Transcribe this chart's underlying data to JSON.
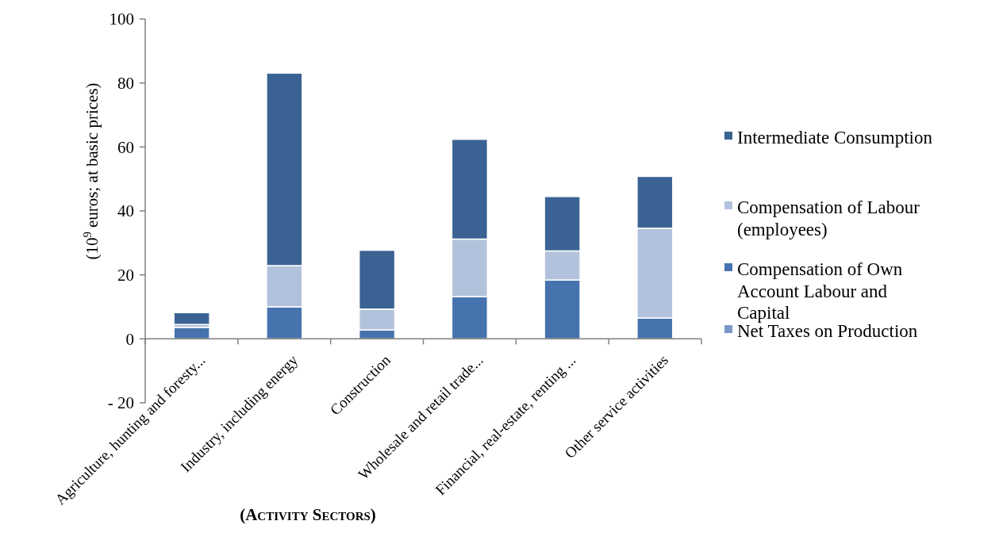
{
  "chart_data": {
    "type": "bar",
    "stacked": true,
    "xlabel": "(Activity Sectors)",
    "ylabel": "(10$^{9}$ euros; at basic prices)",
    "categories": [
      "Agriculture, hunting and foresty...",
      "Industry, including energy",
      "Construction",
      "Wholesale  and retail trade...",
      "Financial, real-estate, renting ...",
      "Other service activities"
    ],
    "series": [
      {
        "name": "Net Taxes on Production",
        "color": "#7a98c6",
        "values": [
          0,
          0,
          0,
          0,
          0,
          0
        ]
      },
      {
        "name": "Compensation of Own Account Labour and Capital",
        "color": "#4673ad",
        "values": [
          3.6,
          10,
          2.8,
          13.2,
          18.4,
          6.5
        ]
      },
      {
        "name": "Compensation of Labour (employees)",
        "color": "#b3c2dc",
        "values": [
          0.9,
          12.9,
          6.5,
          18,
          9.1,
          28.1
        ]
      },
      {
        "name": "Intermediate Consumption",
        "color": "#3a6393",
        "values": [
          3.7,
          60.2,
          18.4,
          31.2,
          17,
          16.2
        ]
      }
    ],
    "ylim": [
      -20,
      100
    ],
    "yticks": [
      {
        "value": -20,
        "label": "-  20"
      },
      0,
      20,
      40,
      60,
      80,
      100
    ],
    "grid": false,
    "legend": "right"
  }
}
